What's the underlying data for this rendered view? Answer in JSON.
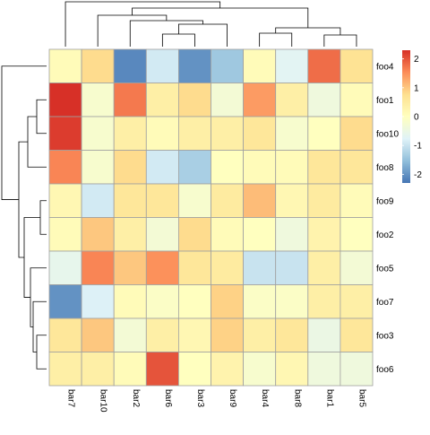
{
  "chart_data": {
    "type": "heatmap",
    "rows": [
      "foo4",
      "foo1",
      "foo10",
      "foo8",
      "foo9",
      "foo2",
      "foo5",
      "foo7",
      "foo3",
      "foo6"
    ],
    "columns": [
      "bar7",
      "bar10",
      "bar2",
      "bar6",
      "bar3",
      "bar9",
      "bar4",
      "bar8",
      "bar1",
      "bar5"
    ],
    "values": [
      [
        0.1,
        0.8,
        -2.1,
        -0.9,
        -2.0,
        -1.4,
        0.1,
        -0.7,
        1.8,
        0.7
      ],
      [
        2.3,
        -0.2,
        1.7,
        0.4,
        0.8,
        -0.3,
        1.4,
        0.4,
        -0.4,
        0.1
      ],
      [
        2.2,
        -0.2,
        0.4,
        0.1,
        0.4,
        0.4,
        0.6,
        -0.2,
        0.0,
        0.8
      ],
      [
        1.6,
        -0.2,
        0.8,
        -0.9,
        -1.3,
        0.0,
        0.1,
        0.1,
        0.6,
        0.6
      ],
      [
        0.2,
        -0.9,
        0.6,
        0.6,
        -0.2,
        0.5,
        1.1,
        0.2,
        0.5,
        0.1
      ],
      [
        0.1,
        1.0,
        0.4,
        -0.3,
        0.8,
        0.1,
        0.0,
        -0.4,
        0.3,
        0.0
      ],
      [
        -0.6,
        1.6,
        1.0,
        1.5,
        0.6,
        0.5,
        -1.0,
        -1.0,
        0.4,
        -0.3
      ],
      [
        -2.0,
        -0.8,
        0.1,
        -0.1,
        0.0,
        0.9,
        -0.1,
        -0.1,
        0.4,
        0.4
      ],
      [
        0.6,
        1.0,
        -0.3,
        0.4,
        0.2,
        0.9,
        0.4,
        0.6,
        -0.5,
        0.6
      ],
      [
        0.4,
        0.4,
        0.1,
        2.0,
        0.0,
        0.3,
        -0.2,
        0.2,
        -0.4,
        -0.4
      ]
    ],
    "legend": {
      "ticks": [
        2,
        1,
        0,
        -1,
        -2
      ],
      "tick_labels": [
        "2",
        "1",
        "0",
        "-1",
        "-2"
      ],
      "range": [
        -2.3,
        2.3
      ],
      "placement": "right",
      "colors": [
        "#4575B4",
        "#91BFDB",
        "#E0F3F8",
        "#FFFFBF",
        "#FEE090",
        "#FC8D59",
        "#D73027"
      ]
    },
    "row_dendrogram": {
      "placement": "left",
      "merges": [
        {
          "a": "foo9",
          "b": "foo2",
          "h": 0.14
        },
        {
          "a": "foo1",
          "b": "foo10",
          "h": 0.22
        },
        {
          "a": "foo3",
          "b": "foo6",
          "h": 0.22
        },
        {
          "a": "foo7",
          "b": "foo3+foo6",
          "h": 0.3
        },
        {
          "a": "foo5",
          "b": "foo7+foo3+foo6",
          "h": 0.36
        },
        {
          "a": "foo1+foo10",
          "b": "foo8",
          "h": 0.42
        },
        {
          "a": "foo9+foo2",
          "b": "foo5+foo7+foo3+foo6",
          "h": 0.5
        },
        {
          "a": "foo1+foo10+foo8",
          "b": "foo9+foo2+foo5+foo7+foo3+foo6",
          "h": 0.62
        },
        {
          "a": "foo4",
          "b": "rest",
          "h": 1.0
        }
      ]
    },
    "column_dendrogram": {
      "placement": "top",
      "merges": [
        {
          "a": "bar1",
          "b": "bar5",
          "h": 0.26
        },
        {
          "a": "bar4",
          "b": "bar8",
          "h": 0.3
        },
        {
          "a": "bar4+bar8",
          "b": "bar1+bar5",
          "h": 0.42
        },
        {
          "a": "bar6",
          "b": "bar3",
          "h": 0.28
        },
        {
          "a": "bar6+bar3",
          "b": "bar9",
          "h": 0.5
        },
        {
          "a": "bar2",
          "b": "bar6+bar3+bar9",
          "h": 0.58
        },
        {
          "a": "bar10",
          "b": "bar2+bar6+bar3+bar9",
          "h": 0.7
        },
        {
          "a": "bar10+bar2+bar6+bar3+bar9",
          "b": "bar4+bar8+bar1+bar5",
          "h": 0.86
        },
        {
          "a": "bar7",
          "b": "rest",
          "h": 1.0
        }
      ]
    },
    "grid": true,
    "cell_border_color": "#A0A0A0"
  }
}
